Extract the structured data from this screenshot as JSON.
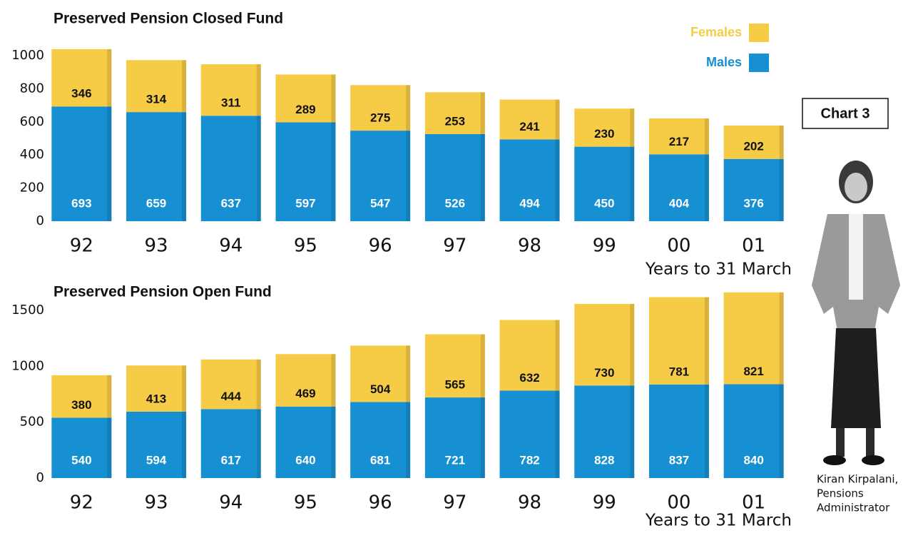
{
  "chart_data": [
    {
      "type": "bar",
      "stacked": true,
      "title": "Preserved Pension Closed Fund",
      "xlabel": "Years to 31 March",
      "categories": [
        "92",
        "93",
        "94",
        "95",
        "96",
        "97",
        "98",
        "99",
        "00",
        "01"
      ],
      "series": [
        {
          "name": "Males",
          "color": "#1690d2",
          "values": [
            693,
            659,
            637,
            597,
            547,
            526,
            494,
            450,
            404,
            376
          ]
        },
        {
          "name": "Females",
          "color": "#f6cb45",
          "values": [
            346,
            314,
            311,
            289,
            275,
            253,
            241,
            230,
            217,
            202
          ]
        }
      ],
      "ylim": [
        0,
        1000
      ],
      "yticks": [
        0,
        200,
        400,
        600,
        800,
        1000
      ],
      "legend": true
    },
    {
      "type": "bar",
      "stacked": true,
      "title": "Preserved Pension Open Fund",
      "xlabel": "Years to 31 March",
      "categories": [
        "92",
        "93",
        "94",
        "95",
        "96",
        "97",
        "98",
        "99",
        "00",
        "01"
      ],
      "series": [
        {
          "name": "Males",
          "color": "#1690d2",
          "values": [
            540,
            594,
            617,
            640,
            681,
            721,
            782,
            828,
            837,
            840
          ]
        },
        {
          "name": "Females",
          "color": "#f6cb45",
          "values": [
            380,
            413,
            444,
            469,
            504,
            565,
            632,
            730,
            781,
            821
          ]
        }
      ],
      "ylim": [
        0,
        1500
      ],
      "yticks": [
        0,
        500,
        1000,
        1500
      ],
      "legend": false
    }
  ],
  "label": "Chart 3",
  "caption": [
    "Kiran Kirpalani,",
    "Pensions",
    "Administrator"
  ]
}
